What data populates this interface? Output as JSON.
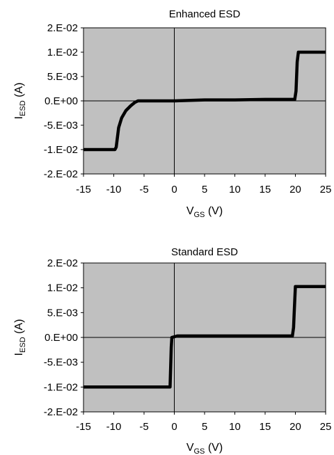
{
  "chart_data": [
    {
      "type": "line",
      "title": "Enhanced ESD",
      "xlabel": "V",
      "xlabel_sub": "GS",
      "xlabel_unit": " (V)",
      "ylabel": "I",
      "ylabel_sub": "ESD",
      "ylabel_unit": " (A)",
      "xlim": [
        -15,
        25
      ],
      "ylim": [
        -0.02,
        0.02
      ],
      "xticks": [
        -15,
        -10,
        -5,
        0,
        5,
        10,
        15,
        20,
        25
      ],
      "xtick_labels": [
        "-15",
        "-10",
        "-5",
        "0",
        "5",
        "10",
        "15",
        "20",
        "25"
      ],
      "yticks": [
        0.02,
        0.01,
        0.005,
        0,
        -0.005,
        -0.01,
        -0.02
      ],
      "ytick_labels": [
        "2.E-02",
        "1.E-02",
        "5.E-03",
        "0.E+00",
        "-5.E-03",
        "-1.E-02",
        "-2.E-02"
      ],
      "grid": false,
      "plot_background": "#c0c0c0",
      "line_color": "#000000",
      "series": [
        {
          "x": [
            -15,
            -9.8,
            -9.6,
            -9.2,
            -8.7,
            -8.0,
            -7.2,
            -6.5,
            -6.0,
            0,
            5,
            10,
            15,
            19.9,
            20.1,
            20.3,
            20.5,
            25
          ],
          "y": [
            -0.01,
            -0.01,
            -0.0095,
            -0.0055,
            -0.0035,
            -0.002,
            -0.001,
            -0.0003,
            0,
            0,
            0.0002,
            0.0002,
            0.0003,
            0.0003,
            0.002,
            0.008,
            0.01,
            0.01
          ]
        }
      ]
    },
    {
      "type": "line",
      "title": "Standard ESD",
      "xlabel": "V",
      "xlabel_sub": "GS",
      "xlabel_unit": " (V)",
      "ylabel": "I",
      "ylabel_sub": "ESD",
      "ylabel_unit": " (A)",
      "xlim": [
        -15,
        25
      ],
      "ylim": [
        -0.02,
        0.02
      ],
      "xticks": [
        -15,
        -10,
        -5,
        0,
        5,
        10,
        15,
        20,
        25
      ],
      "xtick_labels": [
        "-15",
        "-10",
        "-5",
        "0",
        "5",
        "10",
        "15",
        "20",
        "25"
      ],
      "yticks": [
        0.02,
        0.01,
        0.005,
        0,
        -0.005,
        -0.01,
        -0.02
      ],
      "ytick_labels": [
        "2.E-02",
        "1.E-02",
        "5.E-03",
        "0.E+00",
        "-5.E-03",
        "-1.E-02",
        "-2.E-02"
      ],
      "grid": false,
      "plot_background": "#c0c0c0",
      "line_color": "#000000",
      "series": [
        {
          "x": [
            -15,
            -0.7,
            -0.5,
            -0.4,
            0.5,
            5,
            10,
            15,
            19.5,
            19.7,
            19.8,
            20,
            25
          ],
          "y": [
            -0.01,
            -0.01,
            -0.002,
            0,
            0.0003,
            0.0003,
            0.0003,
            0.0003,
            0.0003,
            0.002,
            0.005,
            0.0105,
            0.0105
          ]
        }
      ]
    }
  ]
}
